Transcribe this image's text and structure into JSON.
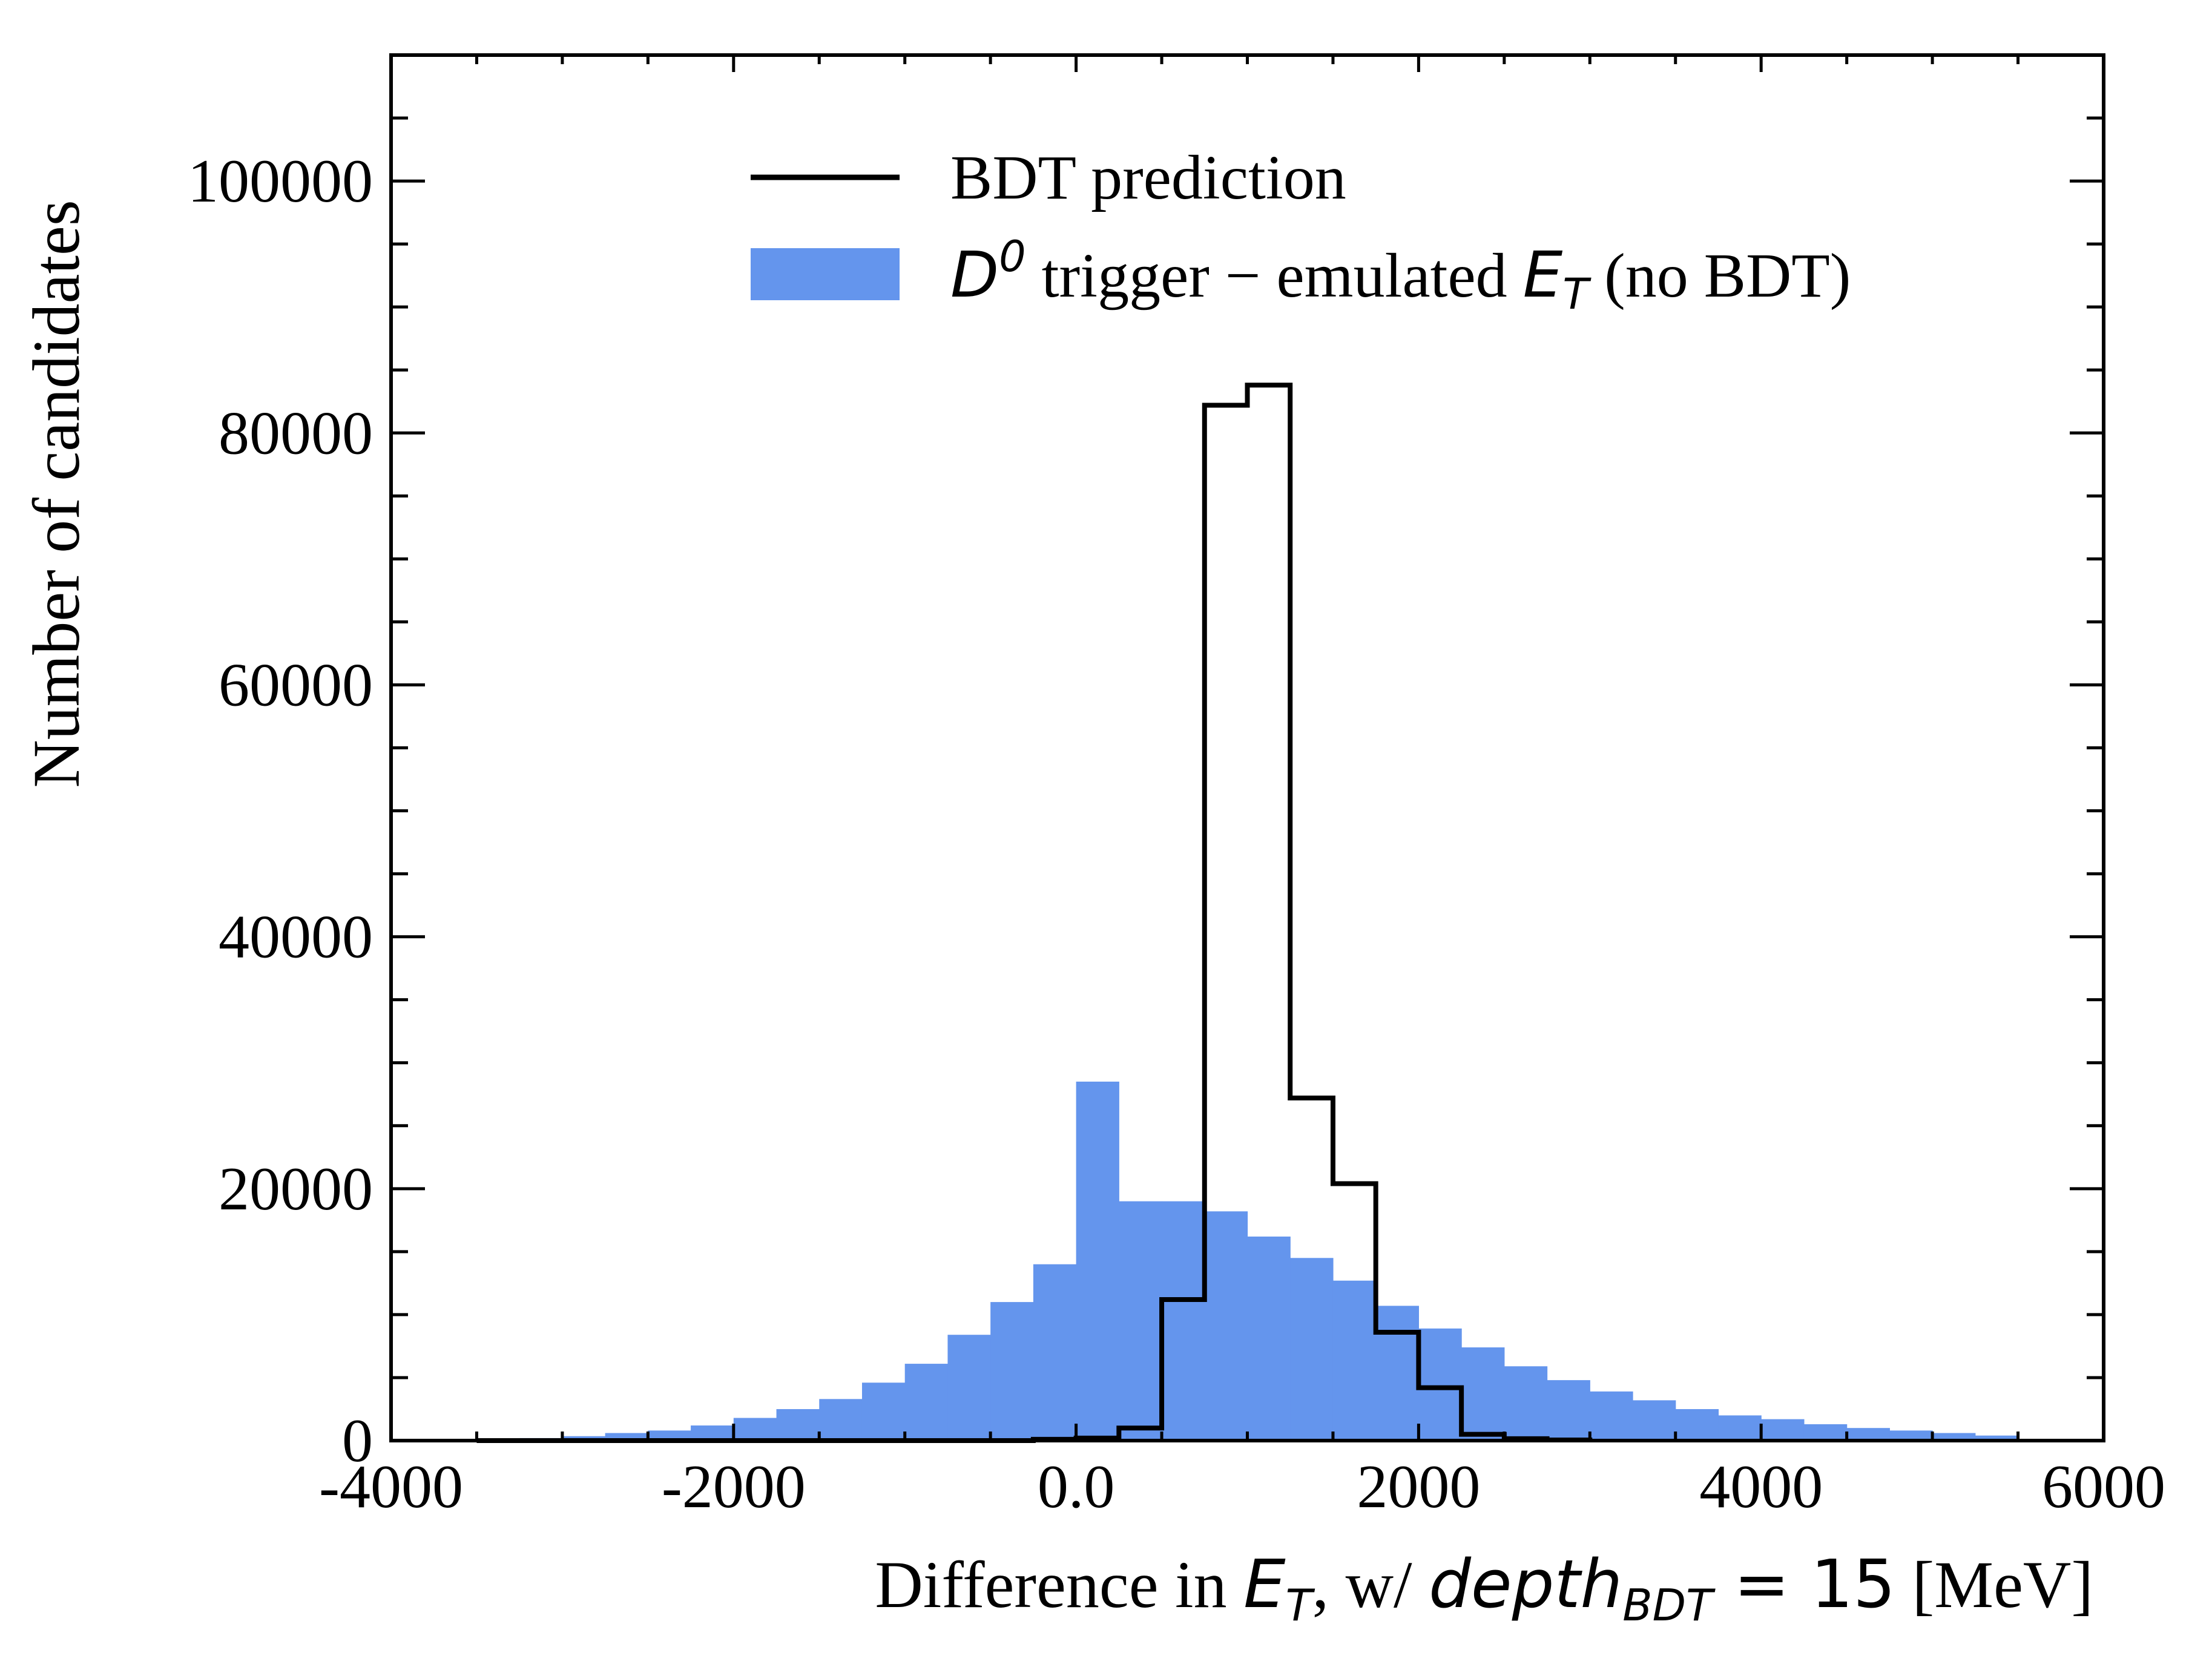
{
  "chart_data": {
    "type": "bar",
    "xlabel_parts": {
      "prefix": "Difference in ",
      "var": "E",
      "var_sub": "T",
      "mid": ", w/ ",
      "depth": "depth",
      "depth_sub": "BDT",
      "eq": " = 15",
      "unit": " [MeV]"
    },
    "ylabel": "Number of candidates",
    "xlim": [
      -4000,
      6000
    ],
    "ylim": [
      0,
      110000
    ],
    "xticks": [
      {
        "value": -4000,
        "label": "-4000"
      },
      {
        "value": -2000,
        "label": "-2000"
      },
      {
        "value": 0,
        "label": "0.0"
      },
      {
        "value": 2000,
        "label": "2000"
      },
      {
        "value": 4000,
        "label": "4000"
      },
      {
        "value": 6000,
        "label": "6000"
      }
    ],
    "yticks": [
      {
        "value": 0,
        "label": "0"
      },
      {
        "value": 20000,
        "label": "20000"
      },
      {
        "value": 40000,
        "label": "40000"
      },
      {
        "value": 60000,
        "label": "60000"
      },
      {
        "value": 80000,
        "label": "80000"
      },
      {
        "value": 100000,
        "label": "100000"
      }
    ],
    "legend_position": "top-center",
    "series": [
      {
        "name": "BDT prediction",
        "style": "step",
        "color": "#000000",
        "bin_edges": [
          -3500,
          -3250,
          -3000,
          -2750,
          -2500,
          -2250,
          -2000,
          -1750,
          -1500,
          -1250,
          -1000,
          -750,
          -500,
          -250,
          0,
          250,
          500,
          750,
          1000,
          1250,
          1500,
          1750,
          2000,
          2250,
          2500,
          2750,
          3000
        ],
        "values": [
          0,
          0,
          0,
          0,
          0,
          0,
          0,
          0,
          0,
          0,
          0,
          0,
          0,
          100,
          200,
          1000,
          11200,
          82200,
          83800,
          27200,
          20400,
          8600,
          4200,
          500,
          150,
          50
        ]
      },
      {
        "name_parts": {
          "d": "D",
          "d_sup": "0",
          "mid": " trigger − emulated ",
          "e": "E",
          "e_sub": "T",
          "tail": " (no BDT)"
        },
        "style": "filled",
        "color": "#6495ED",
        "bin_edges": [
          -3250,
          -3000,
          -2750,
          -2500,
          -2250,
          -2000,
          -1750,
          -1500,
          -1250,
          -1000,
          -750,
          -500,
          -250,
          0,
          250,
          500,
          750,
          1000,
          1250,
          1500,
          1750,
          2000,
          2250,
          2500,
          2750,
          3000,
          3250,
          3500,
          3750,
          4000,
          4250,
          4500,
          4750,
          5000,
          5250,
          5500
        ],
        "values": [
          200,
          350,
          600,
          800,
          1200,
          1800,
          2500,
          3300,
          4600,
          6100,
          8400,
          11000,
          14000,
          28500,
          19000,
          19000,
          18200,
          16200,
          14500,
          12700,
          10700,
          8900,
          7400,
          5900,
          4800,
          3900,
          3200,
          2500,
          2000,
          1700,
          1300,
          1000,
          800,
          600,
          400
        ]
      }
    ]
  }
}
